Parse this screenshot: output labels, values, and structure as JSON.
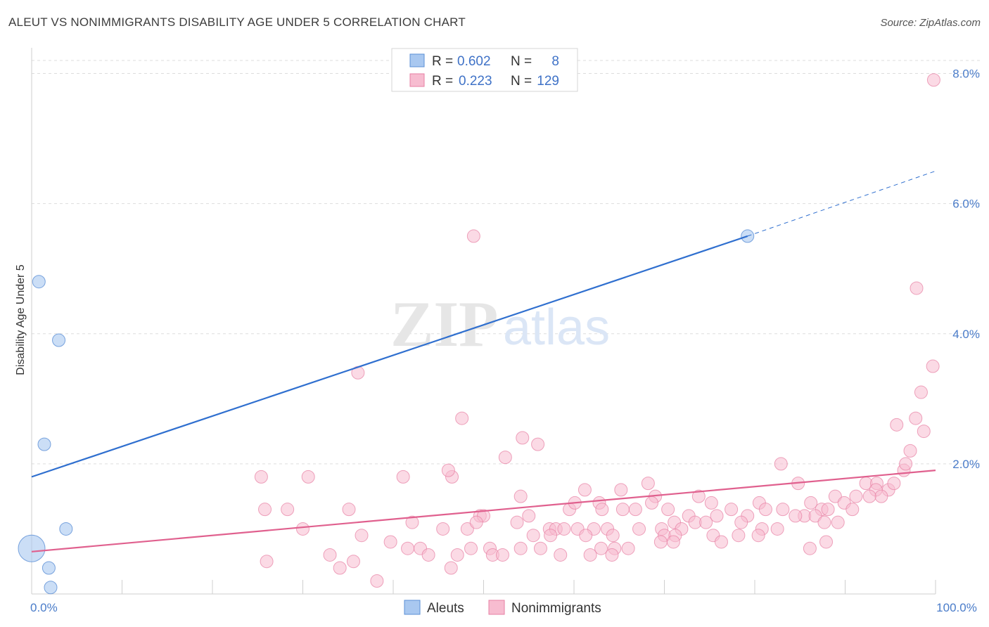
{
  "title": "ALEUT VS NONIMMIGRANTS DISABILITY AGE UNDER 5 CORRELATION CHART",
  "source": "Source: ZipAtlas.com",
  "watermark": {
    "zip": "ZIP",
    "atlas": "atlas"
  },
  "colors": {
    "aleut_fill": "#a9c8f0",
    "aleut_stroke": "#5b8fd6",
    "aleut_line": "#2f6fcf",
    "nonimm_fill": "#f7bcd0",
    "nonimm_stroke": "#e77fa3",
    "nonimm_line": "#e0608e",
    "axis_label": "#4a7cc9",
    "grid": "#dddddd"
  },
  "legend_box": {
    "aleut": {
      "r_label": "R =",
      "r_value": "0.602",
      "n_label": "N =",
      "n_value": "8"
    },
    "nonimmigrants": {
      "r_label": "R =",
      "r_value": "0.223",
      "n_label": "N =",
      "n_value": "129"
    }
  },
  "bottom_legend": {
    "aleut": "Aleuts",
    "nonimmigrants": "Nonimmigrants"
  },
  "chart_data": {
    "type": "scatter",
    "title": "ALEUT VS NONIMMIGRANTS DISABILITY AGE UNDER 5 CORRELATION CHART",
    "xlabel": "",
    "ylabel": "Disability Age Under 5",
    "xlim": [
      0,
      100
    ],
    "ylim": [
      0,
      8.2
    ],
    "x_tick_labels": [
      {
        "value": 0,
        "label": "0.0%"
      },
      {
        "value": 100,
        "label": "100.0%"
      }
    ],
    "x_minor_ticks": [
      10,
      20,
      30,
      40,
      50,
      60,
      70,
      80,
      90,
      100
    ],
    "y_ticks": [
      {
        "value": 2,
        "label": "2.0%"
      },
      {
        "value": 4,
        "label": "4.0%"
      },
      {
        "value": 6,
        "label": "6.0%"
      },
      {
        "value": 8,
        "label": "8.0%"
      }
    ],
    "grid": true,
    "series": [
      {
        "name": "Aleuts",
        "r": 0.602,
        "n": 8,
        "points": [
          [
            0.8,
            4.8,
            "s"
          ],
          [
            3.0,
            3.9,
            "s"
          ],
          [
            1.4,
            2.3,
            "s"
          ],
          [
            3.8,
            1.0,
            "s"
          ],
          [
            0.0,
            0.7,
            "l"
          ],
          [
            1.9,
            0.4,
            "s"
          ],
          [
            2.1,
            0.1,
            "s"
          ],
          [
            79.2,
            5.5,
            "s"
          ]
        ],
        "trend": {
          "x1": 0,
          "y1": 1.8,
          "x2": 79.2,
          "y2": 5.5,
          "dash_x2": 100,
          "dash_y2": 6.5
        }
      },
      {
        "name": "Nonimmigrants",
        "r": 0.223,
        "n": 129,
        "points": [
          [
            99.8,
            7.9
          ],
          [
            97.9,
            4.7
          ],
          [
            48.9,
            5.5
          ],
          [
            36.1,
            3.4
          ],
          [
            99.7,
            3.5
          ],
          [
            98.4,
            3.1
          ],
          [
            97.8,
            2.7
          ],
          [
            95.7,
            2.6
          ],
          [
            98.7,
            2.5
          ],
          [
            97.2,
            2.2
          ],
          [
            47.6,
            2.7
          ],
          [
            54.3,
            2.4
          ],
          [
            56.0,
            2.3
          ],
          [
            52.4,
            2.1
          ],
          [
            82.9,
            2.0
          ],
          [
            96.5,
            1.9
          ],
          [
            96.7,
            2.0
          ],
          [
            25.4,
            1.8
          ],
          [
            30.6,
            1.8
          ],
          [
            41.1,
            1.8
          ],
          [
            46.5,
            1.8
          ],
          [
            46.1,
            1.9
          ],
          [
            68.2,
            1.7
          ],
          [
            84.8,
            1.7
          ],
          [
            92.3,
            1.7
          ],
          [
            93.5,
            1.7
          ],
          [
            94.8,
            1.6
          ],
          [
            95.4,
            1.7
          ],
          [
            93.4,
            1.6
          ],
          [
            94.0,
            1.5
          ],
          [
            54.1,
            1.5
          ],
          [
            61.2,
            1.6
          ],
          [
            65.2,
            1.6
          ],
          [
            73.8,
            1.5
          ],
          [
            88.9,
            1.5
          ],
          [
            89.9,
            1.4
          ],
          [
            91.2,
            1.5
          ],
          [
            92.7,
            1.5
          ],
          [
            62.8,
            1.4
          ],
          [
            69.0,
            1.5
          ],
          [
            75.2,
            1.4
          ],
          [
            80.5,
            1.4
          ],
          [
            83.1,
            1.3
          ],
          [
            86.2,
            1.4
          ],
          [
            87.4,
            1.3
          ],
          [
            88.1,
            1.3
          ],
          [
            90.8,
            1.3
          ],
          [
            25.8,
            1.3
          ],
          [
            28.3,
            1.3
          ],
          [
            35.1,
            1.3
          ],
          [
            49.6,
            1.2
          ],
          [
            50.0,
            1.2
          ],
          [
            55.0,
            1.2
          ],
          [
            59.5,
            1.3
          ],
          [
            60.1,
            1.4
          ],
          [
            63.1,
            1.3
          ],
          [
            65.4,
            1.3
          ],
          [
            66.8,
            1.3
          ],
          [
            68.6,
            1.4
          ],
          [
            70.4,
            1.3
          ],
          [
            72.7,
            1.2
          ],
          [
            75.8,
            1.2
          ],
          [
            77.4,
            1.3
          ],
          [
            79.2,
            1.2
          ],
          [
            81.2,
            1.3
          ],
          [
            85.5,
            1.2
          ],
          [
            86.7,
            1.2
          ],
          [
            42.1,
            1.1
          ],
          [
            45.5,
            1.0
          ],
          [
            48.2,
            1.0
          ],
          [
            49.2,
            1.1
          ],
          [
            53.7,
            1.1
          ],
          [
            57.3,
            1.0
          ],
          [
            58.0,
            1.0
          ],
          [
            58.9,
            1.0
          ],
          [
            60.4,
            1.0
          ],
          [
            62.2,
            1.0
          ],
          [
            63.7,
            1.0
          ],
          [
            67.2,
            1.0
          ],
          [
            69.7,
            1.0
          ],
          [
            71.1,
            1.1
          ],
          [
            71.9,
            1.0
          ],
          [
            73.4,
            1.1
          ],
          [
            74.6,
            1.1
          ],
          [
            78.5,
            1.1
          ],
          [
            80.8,
            1.0
          ],
          [
            82.5,
            1.0
          ],
          [
            84.5,
            1.2
          ],
          [
            87.7,
            1.1
          ],
          [
            89.2,
            1.1
          ],
          [
            30.0,
            1.0
          ],
          [
            36.5,
            0.9
          ],
          [
            39.7,
            0.8
          ],
          [
            55.5,
            0.9
          ],
          [
            57.4,
            0.9
          ],
          [
            61.3,
            0.9
          ],
          [
            64.3,
            0.9
          ],
          [
            70.0,
            0.9
          ],
          [
            71.2,
            0.9
          ],
          [
            75.4,
            0.9
          ],
          [
            78.2,
            0.9
          ],
          [
            80.4,
            0.9
          ],
          [
            41.6,
            0.7
          ],
          [
            43.0,
            0.7
          ],
          [
            48.6,
            0.7
          ],
          [
            50.7,
            0.7
          ],
          [
            54.1,
            0.7
          ],
          [
            56.3,
            0.7
          ],
          [
            63.0,
            0.7
          ],
          [
            64.5,
            0.7
          ],
          [
            66.0,
            0.7
          ],
          [
            69.6,
            0.8
          ],
          [
            71.0,
            0.8
          ],
          [
            76.3,
            0.8
          ],
          [
            26.0,
            0.5
          ],
          [
            33.0,
            0.6
          ],
          [
            35.6,
            0.5
          ],
          [
            43.9,
            0.6
          ],
          [
            46.4,
            0.4
          ],
          [
            47.1,
            0.6
          ],
          [
            51.0,
            0.6
          ],
          [
            52.1,
            0.6
          ],
          [
            58.5,
            0.6
          ],
          [
            61.8,
            0.6
          ],
          [
            64.2,
            0.6
          ],
          [
            34.1,
            0.4
          ],
          [
            38.2,
            0.2
          ],
          [
            86.1,
            0.7
          ],
          [
            87.9,
            0.8
          ]
        ],
        "trend": {
          "x1": 0,
          "y1": 0.65,
          "x2": 100,
          "y2": 1.9
        }
      }
    ]
  }
}
